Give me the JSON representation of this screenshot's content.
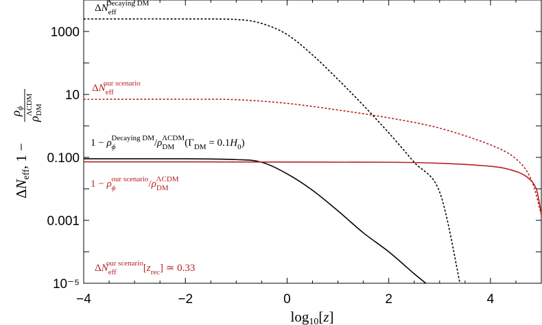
{
  "chart_data": {
    "type": "line",
    "xlabel": "log10[z]",
    "ylabel": "ΔN_eff, 1 − ρ_φ / ρ_DM^ΛCDM",
    "xlim": [
      -4,
      5
    ],
    "ylim": [
      1e-05,
      10000
    ],
    "yscale": "log",
    "x_ticks": [
      {
        "value": -4,
        "label": "−4"
      },
      {
        "value": -2,
        "label": "−2"
      },
      {
        "value": 0,
        "label": "0"
      },
      {
        "value": 2,
        "label": "2"
      },
      {
        "value": 4,
        "label": "4"
      }
    ],
    "y_ticks": [
      {
        "value": 1000,
        "label": "1000"
      },
      {
        "value": 10,
        "label": "10"
      },
      {
        "value": 0.1,
        "label": "0.100"
      },
      {
        "value": 0.001,
        "label": "0.001"
      },
      {
        "value": 1e-05,
        "label": "10⁻⁵"
      }
    ],
    "series": [
      {
        "id": "dneff-decaying",
        "style": "dashed",
        "color": "#000000",
        "x": [
          -4,
          -2,
          -1,
          -0.5,
          0,
          0.5,
          1,
          1.5,
          2,
          2.5,
          3,
          3.4
        ],
        "y": [
          2500,
          2500,
          2400,
          1800,
          800,
          180,
          30,
          4.5,
          0.6,
          0.07,
          0.008,
          1e-05
        ]
      },
      {
        "id": "dneff-ours",
        "style": "dashed",
        "color": "#b52020",
        "x": [
          -4,
          -2,
          -1,
          0,
          1,
          2,
          3,
          4,
          4.5,
          4.8,
          5
        ],
        "y": [
          7,
          7,
          6.8,
          5.2,
          3.2,
          1.8,
          0.85,
          0.25,
          0.09,
          0.02,
          0.0015
        ]
      },
      {
        "id": "rho-decaying",
        "style": "solid",
        "color": "#000000",
        "x": [
          -4,
          -2,
          -1,
          -0.5,
          0,
          0.5,
          1,
          1.5,
          2,
          2.5,
          2.73
        ],
        "y": [
          0.09,
          0.09,
          0.085,
          0.07,
          0.03,
          0.009,
          0.002,
          0.0004,
          0.0001,
          2e-05,
          1e-05
        ]
      },
      {
        "id": "rho-ours",
        "style": "solid",
        "color": "#b52020",
        "x": [
          -4,
          -2,
          0,
          2,
          3,
          4,
          4.4,
          4.7,
          4.9,
          5
        ],
        "y": [
          0.072,
          0.072,
          0.071,
          0.07,
          0.065,
          0.052,
          0.04,
          0.025,
          0.01,
          0.0015
        ]
      }
    ],
    "annotations": {
      "dneff_decaying": {
        "base": "ΔN",
        "sub": "eff",
        "sup": "Decaying DM"
      },
      "dneff_ours": {
        "base": "ΔN",
        "sub": "eff",
        "sup": "our scenario"
      },
      "rho_decaying": {
        "prefix": "1 − ρ",
        "sub": "φ",
        "sup": "Decaying DM",
        "mid": "/ρ",
        "mid_sub": "DM",
        "mid_sup": "ΛCDM",
        "tail": "(Γ",
        "tail_sub": "DM",
        "tail2": " = 0.1H",
        "tail2_sub": "0",
        "tail3": ")"
      },
      "rho_ours": {
        "prefix": "1 − ρ",
        "sub": "φ",
        "sup": "our scenario",
        "mid": "/ρ",
        "mid_sub": "DM",
        "mid_sup": "ΛCDM"
      },
      "zrec": {
        "base": "ΔN",
        "sub": "eff",
        "sup": "our scenario",
        "bracket": "[z",
        "bracket_sub": "rec",
        "tail": "] ≃ 0.33"
      }
    }
  }
}
